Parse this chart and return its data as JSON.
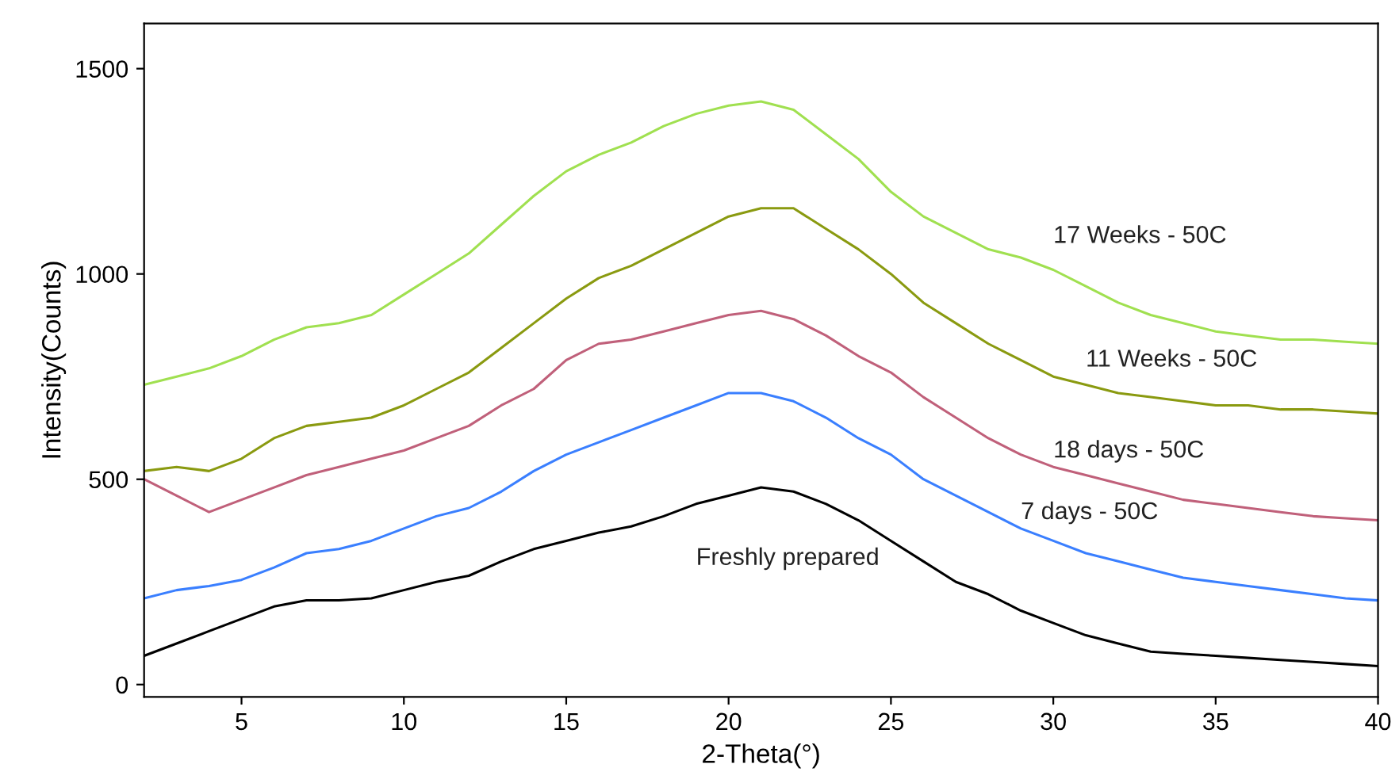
{
  "chart_data": {
    "type": "line",
    "xlabel": "2-Theta(°)",
    "ylabel": "Intensity(Counts)",
    "x": [
      2,
      3,
      4,
      5,
      6,
      7,
      8,
      9,
      10,
      11,
      12,
      13,
      14,
      15,
      16,
      17,
      18,
      19,
      20,
      21,
      22,
      23,
      24,
      25,
      26,
      27,
      28,
      29,
      30,
      31,
      32,
      33,
      34,
      35,
      36,
      37,
      38,
      39,
      40
    ],
    "xlim": [
      2,
      40
    ],
    "ylim": [
      -30,
      1610
    ],
    "xticks": [
      5,
      10,
      15,
      20,
      25,
      30,
      35,
      40
    ],
    "yticks": [
      0,
      500,
      1000,
      1500
    ],
    "grid": false,
    "legend": false,
    "marker": "none",
    "line_style": "solid",
    "series": [
      {
        "name": "Freshly prepared",
        "color": "#000000",
        "values": [
          70,
          100,
          130,
          160,
          190,
          205,
          205,
          210,
          230,
          250,
          265,
          300,
          330,
          350,
          370,
          385,
          410,
          440,
          460,
          480,
          470,
          440,
          400,
          350,
          300,
          250,
          220,
          180,
          150,
          120,
          100,
          80,
          75,
          70,
          65,
          60,
          55,
          50,
          45
        ]
      },
      {
        "name": "7 days - 50C",
        "color": "#3a7fff",
        "values": [
          210,
          230,
          240,
          255,
          285,
          320,
          330,
          350,
          380,
          410,
          430,
          470,
          520,
          560,
          590,
          620,
          650,
          680,
          710,
          710,
          690,
          650,
          600,
          560,
          500,
          460,
          420,
          380,
          350,
          320,
          300,
          280,
          260,
          250,
          240,
          230,
          220,
          210,
          205
        ]
      },
      {
        "name": "18 days - 50C",
        "color": "#c0607a",
        "values": [
          500,
          460,
          420,
          450,
          480,
          510,
          530,
          550,
          570,
          600,
          630,
          680,
          720,
          790,
          830,
          840,
          860,
          880,
          900,
          910,
          890,
          850,
          800,
          760,
          700,
          650,
          600,
          560,
          530,
          510,
          490,
          470,
          450,
          440,
          430,
          420,
          410,
          405,
          400
        ]
      },
      {
        "name": "11 Weeks - 50C",
        "color": "#8a9a10",
        "values": [
          520,
          530,
          520,
          550,
          600,
          630,
          640,
          650,
          680,
          720,
          760,
          820,
          880,
          940,
          990,
          1020,
          1060,
          1100,
          1140,
          1160,
          1160,
          1110,
          1060,
          1000,
          930,
          880,
          830,
          790,
          750,
          730,
          710,
          700,
          690,
          680,
          680,
          670,
          670,
          665,
          660
        ]
      },
      {
        "name": "17 Weeks - 50C",
        "color": "#a0e050",
        "values": [
          730,
          750,
          770,
          800,
          840,
          870,
          880,
          900,
          950,
          1000,
          1050,
          1120,
          1190,
          1250,
          1290,
          1320,
          1360,
          1390,
          1410,
          1420,
          1400,
          1340,
          1280,
          1200,
          1140,
          1100,
          1060,
          1040,
          1010,
          970,
          930,
          900,
          880,
          860,
          850,
          840,
          840,
          835,
          830
        ]
      }
    ]
  }
}
